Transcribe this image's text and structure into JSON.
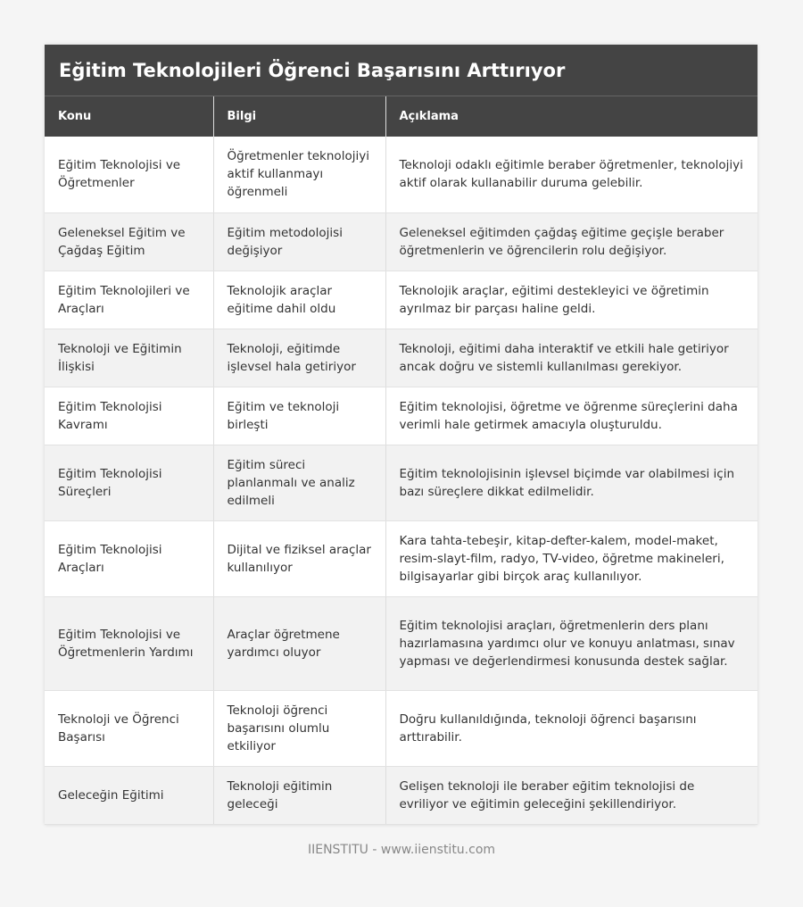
{
  "title": "Eğitim Teknolojileri Öğrenci Başarısını Arttırıyor",
  "columns": [
    "Konu",
    "Bilgi",
    "Açıklama"
  ],
  "rows": [
    [
      "Eğitim Teknolojisi ve Öğretmenler",
      "Öğretmenler teknolojiyi aktif kullanmayı öğrenmeli",
      "Teknoloji odaklı eğitimle beraber öğretmenler, teknolojiyi aktif olarak kullanabilir duruma gelebilir."
    ],
    [
      "Geleneksel Eğitim ve Çağdaş Eğitim",
      "Eğitim metodolojisi değişiyor",
      "Geleneksel eğitimden çağdaş eğitime geçişle beraber öğretmenlerin ve öğrencilerin rolu değişiyor."
    ],
    [
      "Eğitim Teknolojileri ve Araçları",
      "Teknolojik araçlar eğitime dahil oldu",
      "Teknolojik araçlar, eğitimi destekleyici ve öğretimin ayrılmaz bir parçası haline geldi."
    ],
    [
      "Teknoloji ve Eğitimin İlişkisi",
      "Teknoloji, eğitimde işlevsel hala getiriyor",
      "Teknoloji, eğitimi daha interaktif ve etkili hale getiriyor ancak doğru ve sistemli kullanılması gerekiyor."
    ],
    [
      "Eğitim Teknolojisi Kavramı",
      "Eğitim ve teknoloji birleşti",
      "Eğitim teknolojisi, öğretme ve öğrenme süreçlerini daha verimli hale getirmek amacıyla oluşturuldu."
    ],
    [
      "Eğitim Teknolojisi Süreçleri",
      "Eğitim süreci planlanmalı ve analiz edilmeli",
      "Eğitim teknolojisinin işlevsel biçimde var olabilmesi için bazı süreçlere dikkat edilmelidir."
    ],
    [
      "Eğitim Teknolojisi Araçları",
      "Dijital ve fiziksel araçlar kullanılıyor",
      "Kara tahta-tebeşir, kitap-defter-kalem, model-maket, resim-slayt-film, radyo, TV-video, öğretme makineleri, bilgisayarlar gibi birçok araç kullanılıyor."
    ],
    [
      "Eğitim Teknolojisi ve Öğretmenlerin Yardımı",
      "Araçlar öğretmene yardımcı oluyor",
      "Eğitim teknolojisi araçları, öğretmenlerin ders planı hazırlamasına yardımcı olur ve konuyu anlatması, sınav yapması ve değerlendirmesi konusunda destek sağlar."
    ],
    [
      "Teknoloji ve Öğrenci Başarısı",
      "Teknoloji öğrenci başarısını olumlu etkiliyor",
      "Doğru kullanıldığında, teknoloji öğrenci başarısını arttırabilir."
    ],
    [
      "Geleceğin Eğitimi",
      "Teknoloji eğitimin geleceği",
      "Gelişen teknoloji ile beraber eğitim teknolojisi de evriliyor ve eğitimin geleceğini şekillendiriyor."
    ]
  ],
  "footer": "IIENSTITU - www.iienstitu.com"
}
